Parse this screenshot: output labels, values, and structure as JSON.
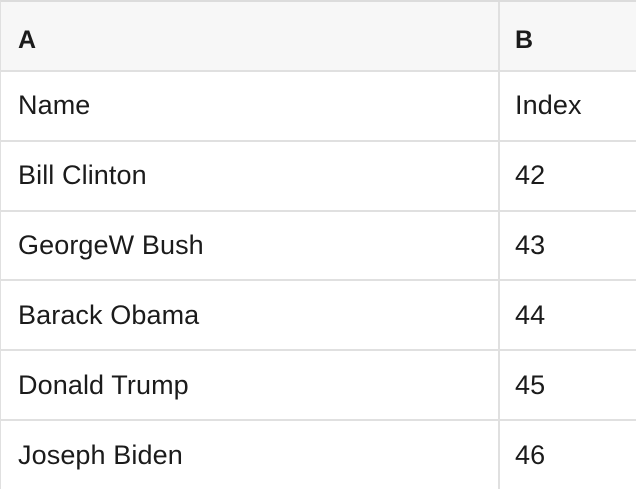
{
  "colors": {
    "page_bg": "#ffffff",
    "row_bg": "#ffffff",
    "header_bg": "#f7f7f7",
    "grid_line": "#e0e0e0",
    "top_border": "#dcdcdc",
    "text": "#1b1b1b"
  },
  "table": {
    "columns": [
      {
        "id": "A",
        "header": "A"
      },
      {
        "id": "B",
        "header": "B"
      }
    ],
    "rows": [
      {
        "a": "Name",
        "b": "Index"
      },
      {
        "a": "Bill Clinton",
        "b": "42"
      },
      {
        "a": "GeorgeW Bush",
        "b": "43"
      },
      {
        "a": "Barack Obama",
        "b": "44"
      },
      {
        "a": "Donald Trump",
        "b": "45"
      },
      {
        "a": "Joseph Biden",
        "b": "46"
      }
    ]
  }
}
